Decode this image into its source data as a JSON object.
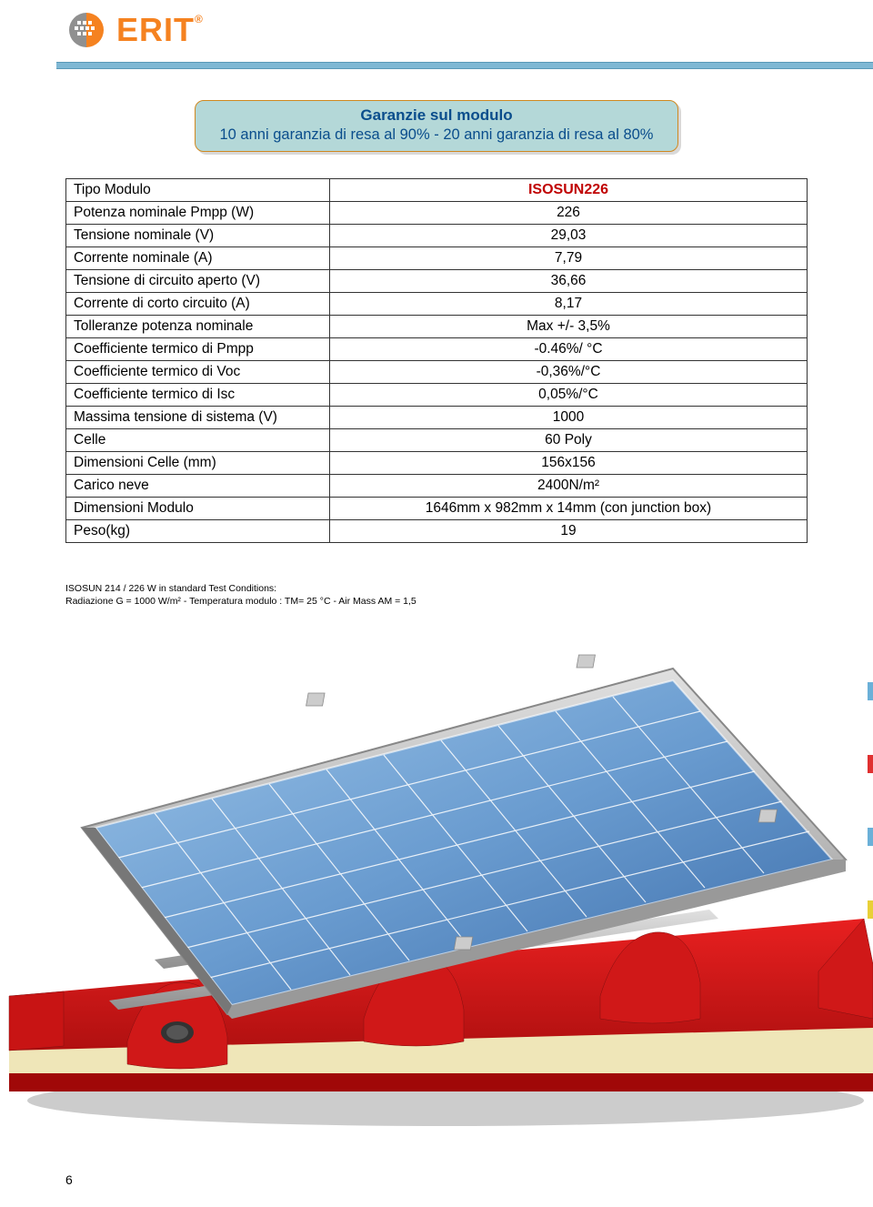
{
  "logo": {
    "text": "ERIT",
    "reg": "®",
    "primary_color": "#f58220",
    "secondary_color": "#808080"
  },
  "guarantee": {
    "title": "Garanzie sul modulo",
    "subtitle": "10 anni garanzia di resa al 90%  - 20 anni garanzia di resa al 80%",
    "bg_color": "#b4d8d8",
    "border_color": "#d08820",
    "text_color": "#0a4d8c"
  },
  "table": {
    "header_label": "Tipo Modulo",
    "header_value": "ISOSUN226",
    "header_value_color": "#c00000",
    "rows": [
      {
        "label": "Potenza nominale Pmpp (W)",
        "value": "226"
      },
      {
        "label": "Tensione nominale (V)",
        "value": "29,03"
      },
      {
        "label": "Corrente nominale  (A)",
        "value": "7,79"
      },
      {
        "label": "Tensione di circuito aperto (V)",
        "value": "36,66"
      },
      {
        "label": "Corrente di corto circuito (A)",
        "value": "8,17"
      },
      {
        "label": "Tolleranze potenza nominale",
        "value": "Max +/- 3,5%"
      },
      {
        "label": "Coefficiente termico di Pmpp",
        "value": "-0.46%/ °C"
      },
      {
        "label": "Coefficiente termico di Voc",
        "value": "-0,36%/°C"
      },
      {
        "label": "Coefficiente termico di Isc",
        "value": "0,05%/°C"
      },
      {
        "label": "Massima tensione di sistema (V)",
        "value": "1000"
      },
      {
        "label": "Celle",
        "value": "60 Poly"
      },
      {
        "label": "Dimensioni Celle (mm)",
        "value": "156x156"
      },
      {
        "label": "Carico neve",
        "value": "2400N/m²"
      },
      {
        "label": "Dimensioni Modulo",
        "value": "1646mm x 982mm x 14mm (con junction box)"
      },
      {
        "label": "Peso(kg)",
        "value": "19"
      }
    ]
  },
  "footnote": {
    "line1": "ISOSUN 214 / 226 W in standard Test Conditions:",
    "line2": "Radiazione G = 1000 W/m² - Temperatura modulo : TM= 25 °C - Air Mass AM = 1,5"
  },
  "illustration": {
    "panel_color_light": "#8db8e0",
    "panel_color_dark": "#3a6ba8",
    "panel_grid_color": "#ffffff",
    "frame_color": "#b8b8b8",
    "roof_top_color": "#d91818",
    "roof_foam_color": "#efe6b8",
    "roof_bottom_color": "#b81010",
    "shadow_color": "#888888"
  },
  "page_number": "6",
  "accent_bar_color": "#7fb8d4"
}
